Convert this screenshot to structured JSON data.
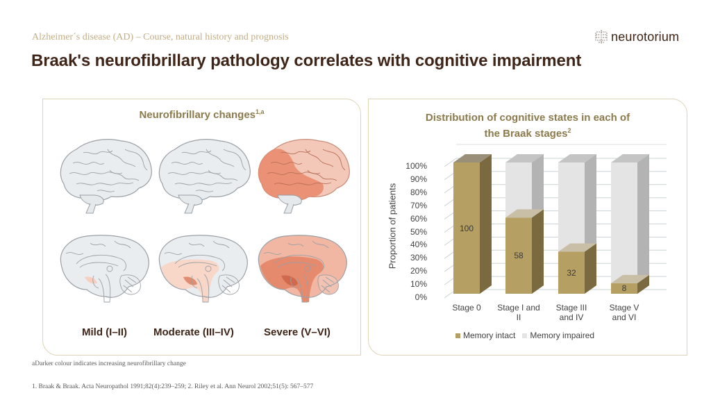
{
  "header": {
    "kicker": "Alzheimer´s  disease (AD) – Course, natural  history and prognosis",
    "title": "Braak's neurofibrillary pathology correlates with cognitive impairment",
    "logo_text": "neurotorium"
  },
  "left_panel": {
    "title": "Neurofibrillary  changes",
    "title_sup": "1,a",
    "stages": [
      {
        "label": "Mild  (I–II)",
        "lateral_color": "#e9edf0",
        "medial_tint": "mild"
      },
      {
        "label": "Moderate (III–IV)",
        "lateral_color": "#e9edf0",
        "medial_tint": "moderate"
      },
      {
        "label": "Severe (V–VI)",
        "lateral_color": "#ea9a80",
        "medial_tint": "severe"
      }
    ]
  },
  "right_panel": {
    "title_line1": "Distribution  of cognitive states in each of",
    "title_line2": "the Braak stages",
    "title_sup": "2"
  },
  "chart_data": {
    "type": "bar",
    "stacked": true,
    "three_d": true,
    "title": "Distribution of cognitive states in each of the Braak stages",
    "xlabel": "",
    "ylabel": "Proportion of patients",
    "ylim": [
      0,
      100
    ],
    "y_ticks": [
      "0%",
      "10%",
      "20%",
      "30%",
      "40%",
      "50%",
      "60%",
      "70%",
      "80%",
      "90%",
      "100%"
    ],
    "categories": [
      "Stage 0",
      "Stage I and II",
      "Stage III and IV",
      "Stage V and VI"
    ],
    "category_lines": [
      [
        "Stage 0"
      ],
      [
        "Stage I and",
        "II"
      ],
      [
        "Stage III",
        "and IV"
      ],
      [
        "Stage V",
        "and VI"
      ]
    ],
    "series": [
      {
        "name": "Memory intact",
        "values": [
          100,
          58,
          32,
          8
        ],
        "color": "#b59f62"
      },
      {
        "name": "Memory impaired",
        "values": [
          0,
          42,
          68,
          92
        ],
        "color": "#e4e4e4"
      }
    ],
    "data_labels": [
      "100",
      "58",
      "32",
      "8"
    ],
    "grid": true,
    "legend_position": "bottom"
  },
  "footnotes": {
    "note_a": "aDarker colour indicates increasing neurofibrillary change",
    "references": "1. Braak & Braak. Acta Neuropathol 1991;82(4):239–259; 2. Riley et al. Ann Neurol 2002;51(5): 567–577"
  },
  "colors": {
    "kicker": "#c2ad85",
    "title": "#3f2418",
    "panel_border": "#dcd3b8",
    "panel_title": "#8b7a4c",
    "memory_intact": "#b59f62",
    "memory_impaired": "#e4e4e4"
  }
}
